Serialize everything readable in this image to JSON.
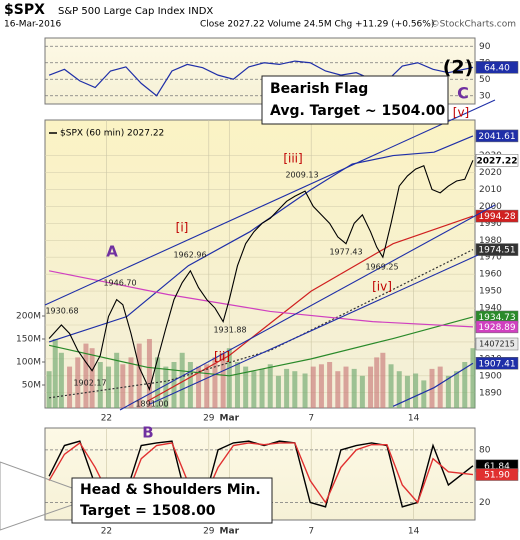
{
  "header": {
    "symbol": "$SPX",
    "name": "S&P 500 Large Cap Index INDX",
    "date": "16-Mar-2016",
    "quote": "Close 2027.22 Volume 24.5M Chg +11.29 (+0.56%)",
    "credit": "©StockCharts.com"
  },
  "chart_data": [
    {
      "type": "line",
      "x": [
        -0.8,
        -0.05,
        0.7,
        1.45,
        2.2,
        2.95,
        3.7,
        4.45,
        5.2,
        5.95,
        6.7,
        7.45,
        8.2,
        8.95,
        9.7,
        10.45,
        11.2,
        11.95,
        12.7,
        13.45,
        14.2,
        14.95,
        15.7,
        16.45,
        17.2,
        17.95,
        18.7,
        19.9
      ],
      "series": [
        {
          "color": "#1f2fa8",
          "values": [
            55,
            62,
            48,
            40,
            60,
            65,
            45,
            30,
            60,
            68,
            64,
            55,
            50,
            65,
            70,
            68,
            72,
            70,
            60,
            55,
            58,
            50,
            48,
            66,
            70,
            62,
            58,
            64.4
          ],
          "value_labels": [
            null,
            null,
            null,
            null,
            null,
            null,
            null,
            null,
            null,
            null,
            null,
            null,
            null,
            null,
            null,
            null,
            null,
            null,
            null,
            null,
            null,
            null,
            null,
            null,
            null,
            null,
            null,
            "64.40"
          ]
        }
      ],
      "xlim": [
        -1,
        20
      ],
      "ylim": [
        20,
        100
      ],
      "yticks": [
        90,
        70,
        50,
        30
      ],
      "grid": true
    },
    {
      "type": "line",
      "legend": "$SPX (60 min) 2027.22",
      "color": "#000000",
      "x": [
        -0.8,
        -0.5,
        -0.2,
        0.2,
        0.6,
        1.0,
        1.3,
        1.7,
        2.1,
        2.5,
        2.8,
        3.2,
        3.6,
        4.1,
        4.5,
        4.9,
        5.3,
        5.7,
        6.1,
        6.5,
        6.9,
        7.3,
        7.7,
        8.0,
        8.4,
        8.8,
        9.2,
        9.6,
        10.0,
        10.4,
        10.8,
        11.2,
        11.7,
        12.1,
        12.5,
        12.9,
        13.3,
        13.7,
        14.1,
        14.5,
        14.9,
        15.2,
        15.5,
        15.9,
        16.3,
        16.7,
        17.1,
        17.5,
        17.9,
        18.3,
        18.7,
        19.1,
        19.5,
        19.9
      ],
      "values": [
        1922,
        1926,
        1930,
        1925,
        1915,
        1908,
        1903,
        1912,
        1935,
        1945,
        1942,
        1925,
        1905,
        1892,
        1910,
        1928,
        1945,
        1955,
        1962,
        1952,
        1945,
        1940,
        1932,
        1945,
        1965,
        1978,
        1985,
        1990,
        1993,
        1998,
        2003,
        2006,
        2009,
        2000,
        1995,
        1990,
        1982,
        1978,
        1990,
        1995,
        1985,
        1976,
        1970,
        1990,
        2012,
        2018,
        2022,
        2024,
        2010,
        2008,
        2012,
        2015,
        2016,
        2027.22
      ],
      "overlays": [
        {
          "color": "#1f2fa8",
          "x": [
            -0.8,
            3,
            6,
            9,
            12,
            14,
            16,
            18,
            19.9
          ],
          "values": [
            1920,
            1935,
            1965,
            1985,
            2010,
            2025,
            2030,
            2032,
            2041.61
          ]
        },
        {
          "color": "#d02020",
          "x": [
            4,
            8,
            12,
            16,
            19.9
          ],
          "values": [
            1885,
            1912,
            1950,
            1978,
            1994.28
          ]
        },
        {
          "color": "#333333",
          "style": "dotted",
          "x": [
            -0.8,
            5,
            10,
            15,
            19.9
          ],
          "values": [
            1887,
            1897,
            1915,
            1945,
            1974.51
          ]
        },
        {
          "color": "#2a8a2a",
          "x": [
            -0.8,
            4,
            8,
            12,
            16,
            19.9
          ],
          "values": [
            1918,
            1905,
            1900,
            1910,
            1922,
            1934.73
          ]
        },
        {
          "color": "#d040c0",
          "x": [
            -0.8,
            5,
            10,
            15,
            19.9
          ],
          "values": [
            1962,
            1948,
            1938,
            1932,
            1928.89
          ]
        },
        {
          "color": "#1f2fa8",
          "x": [
            16,
            18,
            19.9
          ],
          "values": [
            1882,
            1893,
            1907.41
          ]
        }
      ],
      "volume": {
        "values": [
          80000000,
          150000000,
          120000000,
          90000000,
          110000000,
          140000000,
          130000000,
          100000000,
          90000000,
          120000000,
          95000000,
          110000000,
          140000000,
          150000000,
          110000000,
          90000000,
          100000000,
          120000000,
          100000000,
          90000000,
          95000000,
          110000000,
          120000000,
          130000000,
          100000000,
          90000000,
          80000000,
          85000000,
          95000000,
          70000000,
          85000000,
          80000000,
          75000000,
          90000000,
          95000000,
          100000000,
          80000000,
          90000000,
          85000000,
          70000000,
          90000000,
          110000000,
          120000000,
          95000000,
          80000000,
          70000000,
          75000000,
          60000000,
          85000000,
          90000000,
          70000000,
          80000000,
          100000000,
          130000000
        ],
        "ylim": [
          0,
          626000000
        ],
        "yticks": [
          {
            "value": 200000000,
            "label": "200M"
          },
          {
            "value": 150000000,
            "label": "150M"
          },
          {
            "value": 100000000,
            "label": "100M"
          },
          {
            "value": 50000000,
            "label": "50M"
          }
        ]
      },
      "xlim": [
        -1,
        20
      ],
      "ylim": [
        1881,
        2051
      ],
      "yticks": [
        2030,
        2020,
        2010,
        2000,
        1990,
        1980,
        1970,
        1960,
        1950,
        1940,
        1930,
        1920,
        1910,
        1900,
        1890
      ],
      "xticks": [
        {
          "value": 2,
          "label": "22"
        },
        {
          "value": 7,
          "label": "29"
        },
        {
          "value": 8,
          "label": "Mar"
        },
        {
          "value": 12,
          "label": "7"
        },
        {
          "value": 17,
          "label": "14"
        }
      ],
      "grid": true,
      "annotations": [
        "A",
        "[i]",
        "[ii]",
        "[iii]",
        "[iv]",
        "[v]",
        "(2)",
        "C",
        "1930.68",
        "1902.17",
        "1946.70",
        "1891.00",
        "1962.96",
        "1931.88",
        "2009.13",
        "1977.43",
        "1969.25",
        "1407215"
      ],
      "callout": [
        "Bearish Flag",
        "Avg. Target ~ 1504.00"
      ]
    },
    {
      "type": "line",
      "x": [
        -0.8,
        -0.05,
        0.7,
        1.45,
        2.2,
        2.95,
        3.7,
        4.45,
        5.2,
        5.95,
        6.7,
        7.45,
        8.2,
        8.95,
        9.7,
        10.45,
        11.2,
        11.95,
        12.7,
        13.45,
        14.2,
        14.95,
        15.7,
        16.45,
        17.2,
        17.95,
        18.7,
        19.9
      ],
      "series": [
        {
          "color": "#000000",
          "values": [
            50,
            85,
            90,
            40,
            15,
            30,
            85,
            88,
            90,
            20,
            15,
            80,
            88,
            90,
            85,
            90,
            88,
            20,
            15,
            80,
            85,
            88,
            85,
            15,
            20,
            85,
            40,
            61.84
          ],
          "value_labels": [
            null,
            null,
            null,
            null,
            null,
            null,
            null,
            null,
            null,
            null,
            null,
            null,
            null,
            null,
            null,
            null,
            null,
            null,
            null,
            null,
            null,
            null,
            null,
            null,
            null,
            null,
            null,
            "61.84"
          ]
        },
        {
          "color": "#e03030",
          "values": [
            45,
            75,
            88,
            60,
            25,
            25,
            70,
            85,
            88,
            45,
            20,
            60,
            85,
            88,
            86,
            88,
            88,
            45,
            20,
            60,
            80,
            86,
            86,
            40,
            20,
            70,
            55,
            51.9
          ],
          "value_labels": [
            null,
            null,
            null,
            null,
            null,
            null,
            null,
            null,
            null,
            null,
            null,
            null,
            null,
            null,
            null,
            null,
            null,
            null,
            null,
            null,
            null,
            null,
            null,
            null,
            null,
            null,
            null,
            "51.90"
          ]
        }
      ],
      "xlim": [
        -1,
        20
      ],
      "ylim": [
        0,
        105
      ],
      "yticks": [
        80,
        20
      ],
      "xticks": [
        {
          "value": 2,
          "label": "22"
        },
        {
          "value": 7,
          "label": "29"
        },
        {
          "value": 8,
          "label": "Mar"
        },
        {
          "value": 12,
          "label": "7"
        },
        {
          "value": 17,
          "label": "14"
        }
      ],
      "grid": true,
      "annotations": [
        "B"
      ],
      "callout": [
        "Head & Shoulders Min.",
        "Target = 1508.00"
      ]
    }
  ]
}
